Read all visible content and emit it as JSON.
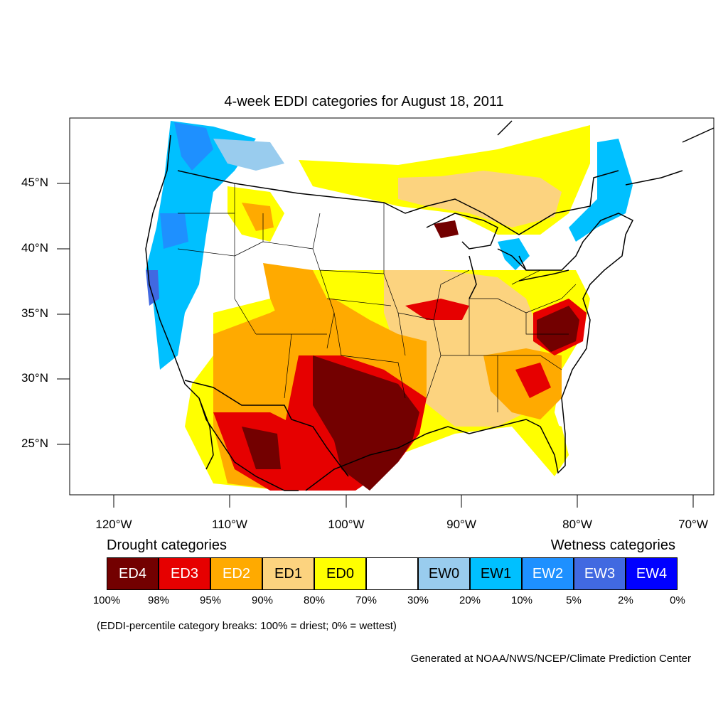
{
  "title": "4-week EDDI categories for August 18, 2011",
  "latitude_labels": [
    "45°N",
    "40°N",
    "35°N",
    "30°N",
    "25°N"
  ],
  "longitude_labels": [
    "120°W",
    "110°W",
    "100°W",
    "90°W",
    "80°W",
    "70°W"
  ],
  "legend": {
    "drought_heading": "Drought categories",
    "wetness_heading": "Wetness categories",
    "categories": [
      {
        "label": "ED4",
        "color": "#730000",
        "text_color": "#ffffff"
      },
      {
        "label": "ED3",
        "color": "#e60000",
        "text_color": "#ffffff"
      },
      {
        "label": "ED2",
        "color": "#ffaa00",
        "text_color": "#ffffff"
      },
      {
        "label": "ED1",
        "color": "#fcd37f",
        "text_color": "#000000"
      },
      {
        "label": "ED0",
        "color": "#ffff00",
        "text_color": "#000000"
      },
      {
        "label": "",
        "color": "#ffffff",
        "text_color": "#000000"
      },
      {
        "label": "EW0",
        "color": "#99ccee",
        "text_color": "#000000"
      },
      {
        "label": "EW1",
        "color": "#00c0ff",
        "text_color": "#000000"
      },
      {
        "label": "EW2",
        "color": "#1e90ff",
        "text_color": "#ffffff"
      },
      {
        "label": "EW3",
        "color": "#4169e1",
        "text_color": "#ffffff"
      },
      {
        "label": "EW4",
        "color": "#0000ff",
        "text_color": "#ffffff"
      }
    ],
    "percentile_breaks": [
      "100%",
      "98%",
      "95%",
      "90%",
      "80%",
      "70%",
      "30%",
      "20%",
      "10%",
      "5%",
      "2%",
      "0%"
    ]
  },
  "footnote": "(EDDI-percentile category breaks: 100% = driest; 0% = wettest)",
  "credit": "Generated at NOAA/NWS/NCEP/Climate Prediction Center"
}
